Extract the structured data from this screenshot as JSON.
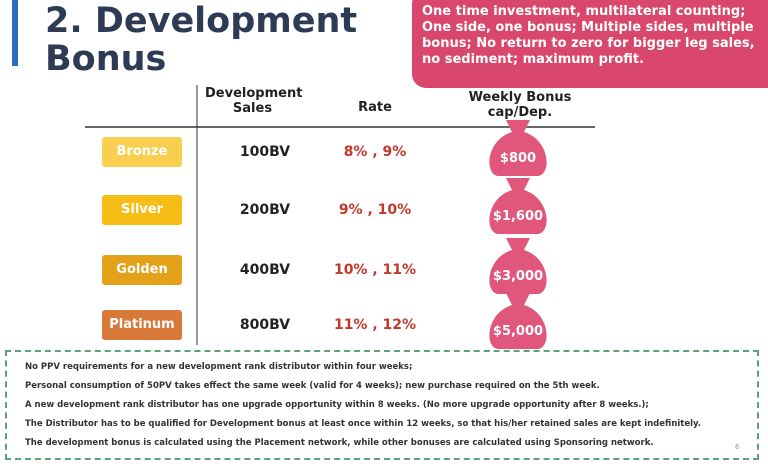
{
  "header": {
    "title": "2. Development Bonus",
    "callout": [
      "One time investment, multilateral counting;",
      "One side, one bonus; Multiple sides, multiple",
      "bonus; No return to zero for bigger leg sales,",
      "no sediment; maximum profit."
    ]
  },
  "table": {
    "headers": [
      "Development Sales",
      "Rate",
      "Weekly Bonus cap/Dep."
    ],
    "rows": [
      [
        "Bronze",
        "100BV",
        "8% , 9%",
        "$800"
      ],
      [
        "Silver",
        "200BV",
        "9% , 10%",
        "$1,600"
      ],
      [
        "Golden",
        "400BV",
        "10% , 11%",
        "$3,000"
      ],
      [
        "Platinum",
        "800BV",
        "11% , 12%",
        "$5,000"
      ]
    ]
  },
  "notes": [
    "No PPV requirements for a new development rank distributor within four weeks;",
    "Personal consumption of 50PV takes effect the same week (valid for 4 weeks); new purchase required on the 5th week.",
    "A new development rank distributor has one upgrade opportunity within 8 weeks. (No more upgrade opportunity after 8 weeks.);",
    "The Distributor has to be qualified for Development bonus at least once within 12 weeks, so that his/her retained sales are kept indefinitely.",
    "The development bonus is calculated using the Placement network, while other bonuses are calculated using Sponsoring network."
  ],
  "page_number": "6"
}
